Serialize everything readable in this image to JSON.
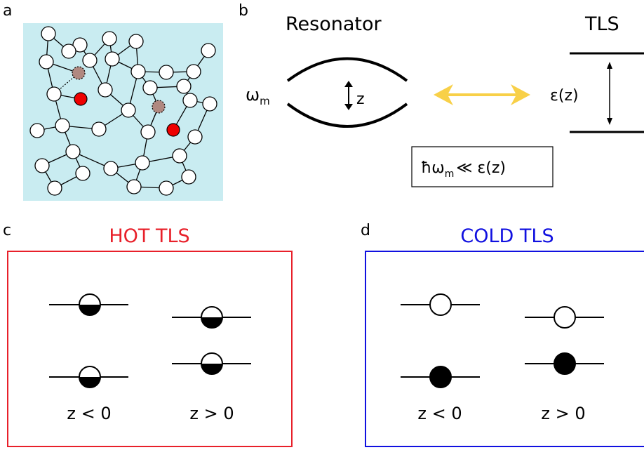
{
  "panels": {
    "a": {
      "letter": "a"
    },
    "b": {
      "letter": "b",
      "resonator_title": "Resonator",
      "tls_title": "TLS",
      "omega_label": "ω",
      "omega_sub": "m",
      "z_label": "z",
      "epsilon_label": "ε(z)",
      "relation": {
        "hbar_omega": "ħω",
        "sub": "m",
        "rest": "≪ ε(z)"
      }
    },
    "c": {
      "letter": "c",
      "title": "HOT TLS",
      "color": "#e8202a",
      "left_caption": "z < 0",
      "right_caption": "z > 0"
    },
    "d": {
      "letter": "d",
      "title": "COLD TLS",
      "color": "#1010e0",
      "left_caption": "z < 0",
      "right_caption": "z > 0"
    }
  },
  "colors": {
    "background_a": "#c9ecf1",
    "red_atom": "#ee0000",
    "brown_atom": "#b08880",
    "arrow_yellow": "#f8d048"
  }
}
